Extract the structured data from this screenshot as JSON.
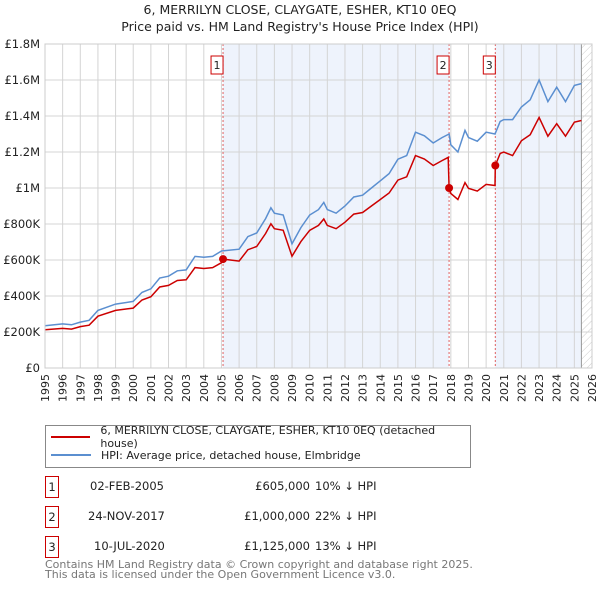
{
  "chart_data": {
    "type": "line",
    "title": "6, MERRILYN CLOSE, CLAYGATE, ESHER, KT10 0EQ",
    "subtitle": "Price paid vs. HM Land Registry's House Price Index (HPI)",
    "xlim": [
      1995,
      2026
    ],
    "ylim": [
      0,
      1800000
    ],
    "y_ticks": [
      0,
      200000,
      400000,
      600000,
      800000,
      1000000,
      1200000,
      1400000,
      1600000,
      1800000
    ],
    "y_tick_labels": [
      "£0",
      "£200K",
      "£400K",
      "£600K",
      "£800K",
      "£1M",
      "£1.2M",
      "£1.4M",
      "£1.6M",
      "£1.8M"
    ],
    "x_ticks": [
      1995,
      1996,
      1997,
      1998,
      1999,
      2000,
      2001,
      2002,
      2003,
      2004,
      2005,
      2006,
      2007,
      2008,
      2009,
      2010,
      2011,
      2012,
      2013,
      2014,
      2015,
      2016,
      2017,
      2018,
      2019,
      2020,
      2021,
      2022,
      2023,
      2024,
      2025,
      2026
    ],
    "grid": true,
    "series": [
      {
        "name": "6, MERRILYN CLOSE, CLAYGATE, ESHER, KT10 0EQ (detached house)",
        "color": "#cc0000",
        "x": [
          1995,
          1996,
          1996.5,
          1997,
          1997.5,
          1998,
          1999,
          2000,
          2000.5,
          2001,
          2001.5,
          2002,
          2002.5,
          2003,
          2003.5,
          2004,
          2004.5,
          2005,
          2005.08,
          2006,
          2006.5,
          2007,
          2007.5,
          2007.8,
          2008,
          2008.5,
          2009,
          2009.5,
          2010,
          2010.5,
          2010.8,
          2011,
          2011.5,
          2012,
          2012.5,
          2013,
          2013.5,
          2014,
          2014.5,
          2015,
          2015.5,
          2016,
          2016.5,
          2017,
          2017.5,
          2017.85,
          2017.9,
          2018,
          2018.4,
          2018.8,
          2019,
          2019.5,
          2020,
          2020.5,
          2020.52,
          2020.8,
          2021,
          2021.5,
          2022,
          2022.5,
          2023,
          2023.5,
          2024,
          2024.5,
          2025,
          2025.4
        ],
        "y": [
          212,
          220,
          216,
          230,
          238,
          288,
          320,
          333,
          378,
          396,
          450,
          459,
          486,
          490,
          558,
          553,
          558,
          585,
          605,
          594,
          657,
          675,
          747,
          801,
          774,
          765,
          621,
          702,
          765,
          792,
          828,
          792,
          774,
          810,
          855,
          864,
          900,
          936,
          972,
          1044,
          1062,
          1180,
          1161,
          1125,
          1152,
          1170,
          1000,
          970,
          936,
          1030,
          998,
          983,
          1020,
          1014,
          1125,
          1192,
          1200,
          1180,
          1262,
          1296,
          1392,
          1288,
          1357,
          1288,
          1366,
          1375
        ]
      },
      {
        "name": "HPI: Average price, detached house, Elmbridge",
        "color": "#5b8fd0",
        "x": [
          1995,
          1996,
          1996.5,
          1997,
          1997.5,
          1998,
          1999,
          2000,
          2000.5,
          2001,
          2001.5,
          2002,
          2002.5,
          2003,
          2003.5,
          2004,
          2004.5,
          2005,
          2006,
          2006.5,
          2007,
          2007.5,
          2007.8,
          2008,
          2008.5,
          2009,
          2009.5,
          2010,
          2010.5,
          2010.8,
          2011,
          2011.5,
          2012,
          2012.5,
          2013,
          2013.5,
          2014,
          2014.5,
          2015,
          2015.5,
          2016,
          2016.5,
          2017,
          2017.5,
          2017.9,
          2018,
          2018.4,
          2018.8,
          2019,
          2019.5,
          2020,
          2020.5,
          2020.8,
          2021,
          2021.5,
          2022,
          2022.5,
          2023,
          2023.5,
          2024,
          2024.5,
          2025,
          2025.4
        ],
        "y": [
          235,
          245,
          240,
          255,
          265,
          320,
          355,
          370,
          420,
          440,
          500,
          510,
          540,
          545,
          620,
          615,
          620,
          650,
          660,
          730,
          750,
          830,
          890,
          860,
          850,
          690,
          780,
          850,
          880,
          920,
          880,
          860,
          900,
          950,
          960,
          1000,
          1040,
          1080,
          1160,
          1180,
          1310,
          1290,
          1250,
          1280,
          1300,
          1240,
          1200,
          1320,
          1280,
          1260,
          1310,
          1300,
          1370,
          1380,
          1380,
          1450,
          1490,
          1600,
          1480,
          1560,
          1480,
          1570,
          1580
        ]
      }
    ],
    "y_units": "thousands GBP",
    "sales": [
      {
        "label": "1",
        "x": 2005.09,
        "y": 605
      },
      {
        "label": "2",
        "x": 2017.9,
        "y": 1000
      },
      {
        "label": "3",
        "x": 2020.52,
        "y": 1125
      }
    ],
    "data_end": 2025.4,
    "legend_placement": "below"
  },
  "transactions": [
    {
      "num": "1",
      "date": "02-FEB-2005",
      "price": "£605,000",
      "hpi": "10% ↓ HPI"
    },
    {
      "num": "2",
      "date": "24-NOV-2017",
      "price": "£1,000,000",
      "hpi": "22% ↓ HPI"
    },
    {
      "num": "3",
      "date": "10-JUL-2020",
      "price": "£1,125,000",
      "hpi": "13% ↓ HPI"
    }
  ],
  "footer": [
    "Contains HM Land Registry data © Crown copyright and database right 2025.",
    "This data is licensed under the Open Government Licence v3.0."
  ]
}
